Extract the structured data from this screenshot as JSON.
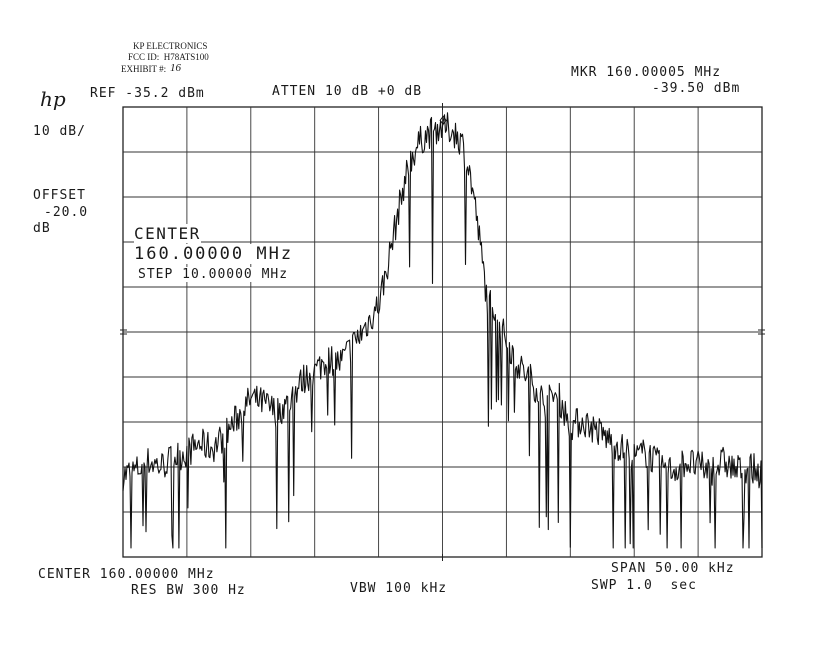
{
  "exhibit_label": {
    "company": "KP ELECTRONICS",
    "fcc_id": "FCC ID:  H78ATS100",
    "exhibit": "EXHIBIT #:",
    "exhibit_number": "16"
  },
  "header": {
    "logo": "hp",
    "ref": "REF -35.2 dBm",
    "atten": "ATTEN 10 dB +0 dB",
    "marker_freq": "MKR 160.00005 MHz",
    "marker_level": "-39.50 dBm"
  },
  "side": {
    "scale": "10 dB/",
    "offset_label": "OFFSET",
    "offset_value": "-20.0",
    "offset_unit": "dB"
  },
  "overlay": {
    "center_title": "CENTER",
    "center_value": "160.00000 MHz",
    "step": "STEP 10.00000 MHz"
  },
  "footer": {
    "center": "CENTER 160.00000 MHz",
    "res_bw": "RES BW 300 Hz",
    "vbw": "VBW 100 kHz",
    "span": "SPAN 50.00 kHz",
    "sweep": "SWP 1.0  sec"
  },
  "chart_data": {
    "type": "line",
    "x_unit": "kHz offset from center 160.00000 MHz",
    "y_unit": "dBm",
    "xlim": [
      -25,
      25
    ],
    "ylim": [
      -135.2,
      -35.2
    ],
    "grid": true,
    "x_divisions": 10,
    "y_divisions": 10,
    "marker": {
      "x": 0.05,
      "y": -39.5
    },
    "series": [
      {
        "x": [
          -25,
          -24,
          -23,
          -22,
          -21,
          -20,
          -19,
          -18,
          -17,
          -16,
          -15,
          -14,
          -13,
          -12,
          -11,
          -10,
          -9,
          -8,
          -7,
          -6,
          -5,
          -4.5,
          -4,
          -3.5,
          -3,
          -2.5,
          -2,
          -1.5,
          -1,
          -0.5,
          0,
          0.5,
          1,
          1.5,
          2,
          2.5,
          3,
          3.5,
          4,
          4.5,
          5,
          6,
          7,
          8,
          9,
          10,
          11,
          12,
          13,
          14,
          15,
          16,
          17,
          18,
          19,
          20,
          21,
          22,
          23,
          24,
          25
        ],
        "y": [
          -117,
          -116,
          -114,
          -115,
          -113,
          -112,
          -110,
          -111,
          -108,
          -104,
          -100,
          -101,
          -103,
          -101,
          -96,
          -94,
          -91,
          -92,
          -88,
          -84,
          -79,
          -73,
          -66,
          -59,
          -52,
          -47,
          -44,
          -42,
          -41,
          -40,
          -39.5,
          -40,
          -41,
          -43,
          -48,
          -56,
          -67,
          -78,
          -79,
          -84,
          -87,
          -93,
          -96,
          -101,
          -99,
          -106,
          -105,
          -107,
          -109,
          -111,
          -113,
          -112,
          -115,
          -116,
          -114,
          -115,
          -116,
          -114,
          -116,
          -115,
          -117
        ]
      }
    ]
  }
}
